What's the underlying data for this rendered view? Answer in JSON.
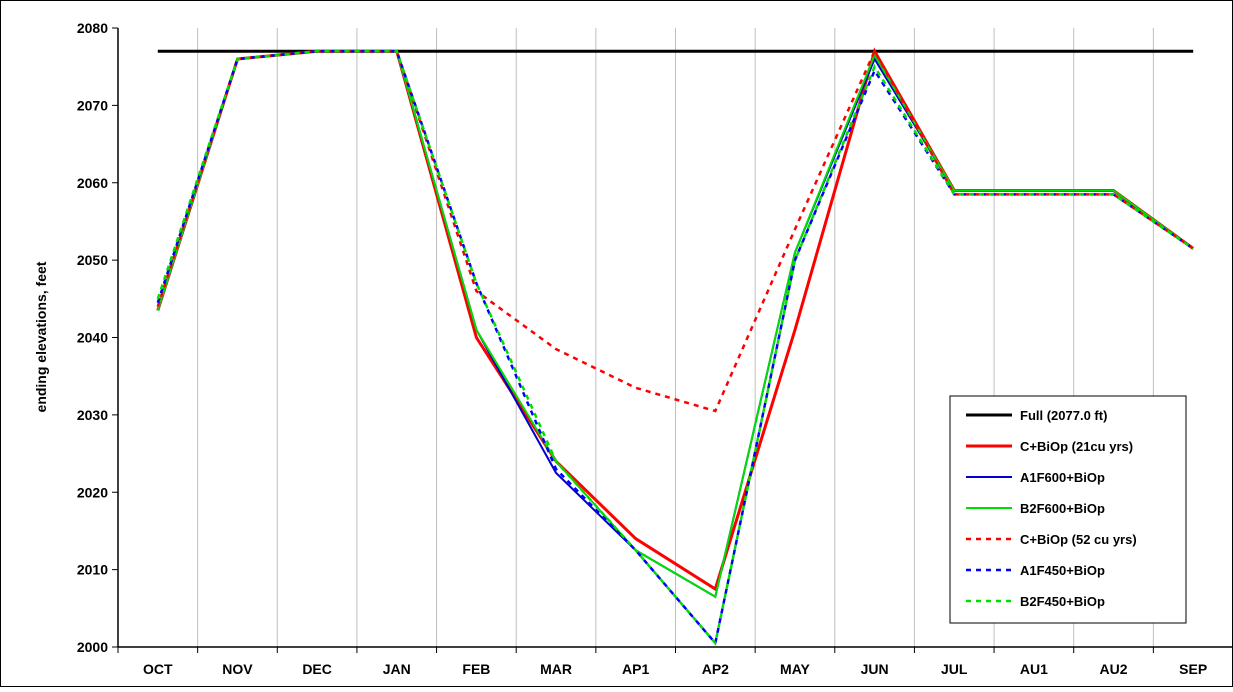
{
  "chart_data": {
    "type": "line",
    "title": "",
    "xlabel": "",
    "ylabel": "ending elevations, feet",
    "ylim": [
      2000,
      2080
    ],
    "yticks": [
      2000,
      2010,
      2020,
      2030,
      2040,
      2050,
      2060,
      2070,
      2080
    ],
    "grid": "vertical",
    "legend_position": "bottom-right",
    "categories": [
      "OCT",
      "NOV",
      "DEC",
      "JAN",
      "FEB",
      "MAR",
      "AP1",
      "AP2",
      "MAY",
      "JUN",
      "JUL",
      "AU1",
      "AU2",
      "SEP"
    ],
    "series": [
      {
        "name": "Full (2077.0 ft)",
        "color": "#000000",
        "dash": "solid",
        "width": 3,
        "values": [
          2077,
          2077,
          2077,
          2077,
          2077,
          2077,
          2077,
          2077,
          2077,
          2077,
          2077,
          2077,
          2077,
          2077
        ]
      },
      {
        "name": "C+BiOp (21cu yrs)",
        "color": "#ff0000",
        "dash": "solid",
        "width": 3,
        "values": [
          2043.5,
          2076,
          2077,
          2077,
          2040,
          2024,
          2014,
          2007.5,
          2041,
          2077,
          2059,
          2059,
          2059,
          2051.5
        ]
      },
      {
        "name": "A1F600+BiOp",
        "color": "#0000cc",
        "dash": "solid",
        "width": 2,
        "values": [
          2043.5,
          2076,
          2077,
          2077,
          2041,
          2022.5,
          2012.5,
          2006.5,
          2051,
          2076,
          2059,
          2059,
          2059,
          2051.5
        ]
      },
      {
        "name": "B2F600+BiOp",
        "color": "#00dd00",
        "dash": "solid",
        "width": 2,
        "values": [
          2043.5,
          2076,
          2077,
          2077,
          2041,
          2024,
          2012.5,
          2006.5,
          2051,
          2076.5,
          2059,
          2059,
          2059,
          2051.5
        ]
      },
      {
        "name": "C+BiOp (52 cu yrs)",
        "color": "#ff0000",
        "dash": "dotted",
        "width": 2.5,
        "values": [
          2044,
          2076,
          2077,
          2077,
          2046,
          2038.5,
          2033.5,
          2030.5,
          2054,
          2077,
          2058.5,
          2058.5,
          2058.5,
          2051.5
        ]
      },
      {
        "name": "A1F450+BiOp",
        "color": "#0000ff",
        "dash": "dotted",
        "width": 2.5,
        "values": [
          2044.5,
          2076,
          2077,
          2077,
          2047,
          2023,
          2012.5,
          2000.5,
          2050,
          2074.5,
          2058.5,
          2058.5,
          2058.5,
          2051.5
        ]
      },
      {
        "name": "B2F450+BiOp",
        "color": "#00dd00",
        "dash": "dotted",
        "width": 2.5,
        "values": [
          2045,
          2076,
          2077,
          2077,
          2047,
          2024,
          2012.5,
          2000.5,
          2050,
          2075,
          2058.5,
          2058.5,
          2058.5,
          2051.5
        ]
      }
    ]
  }
}
